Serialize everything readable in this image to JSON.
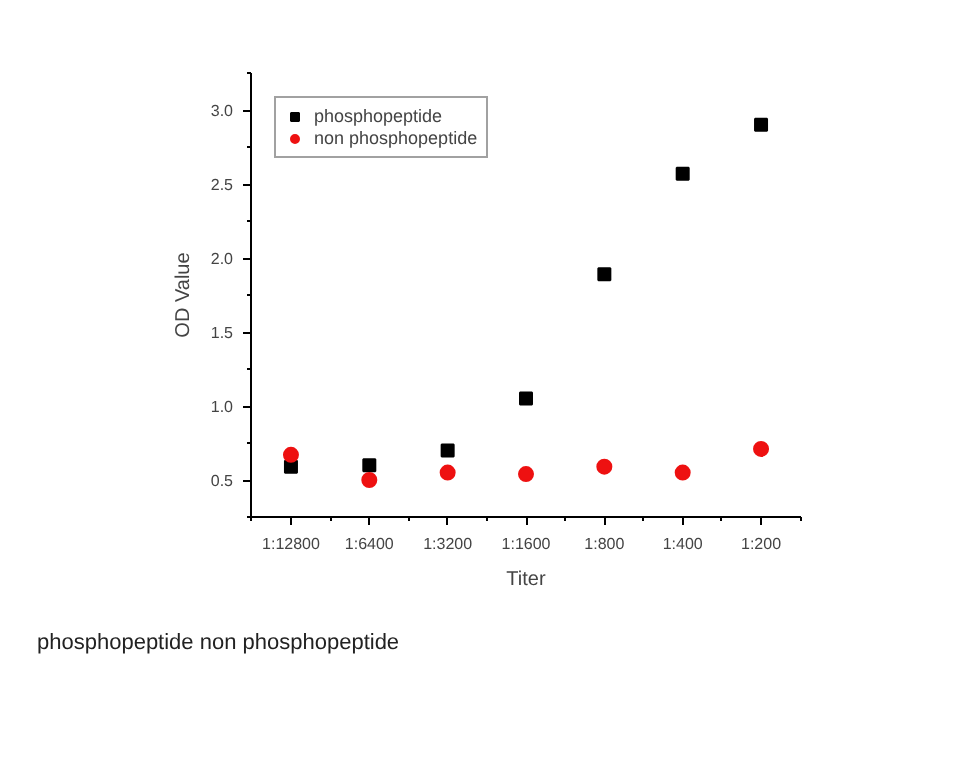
{
  "chart_data": {
    "type": "scatter",
    "xlabel": "Titer",
    "ylabel": "OD Value",
    "categories": [
      "1:12800",
      "1:6400",
      "1:3200",
      "1:1600",
      "1:800",
      "1:400",
      "1:200"
    ],
    "series": [
      {
        "name": "phosphopeptide",
        "color": "#000000",
        "marker": "square",
        "values": [
          0.59,
          0.6,
          0.7,
          1.05,
          1.89,
          2.57,
          2.9
        ]
      },
      {
        "name": "non phosphopeptide",
        "color": "#ee1111",
        "marker": "circle",
        "values": [
          0.67,
          0.5,
          0.55,
          0.54,
          0.59,
          0.55,
          0.71
        ]
      }
    ],
    "ylim": [
      0.25,
      3.25
    ],
    "yticks": [
      0.5,
      {
        "value": 1,
        "label": "1.0"
      },
      1.5,
      {
        "value": 2,
        "label": "2.0"
      },
      2.5,
      {
        "value": 3,
        "label": "3.0"
      }
    ],
    "grid": false,
    "legend": "top left",
    "annotations": [
      "phosphopeptide non phosphopeptide"
    ]
  }
}
